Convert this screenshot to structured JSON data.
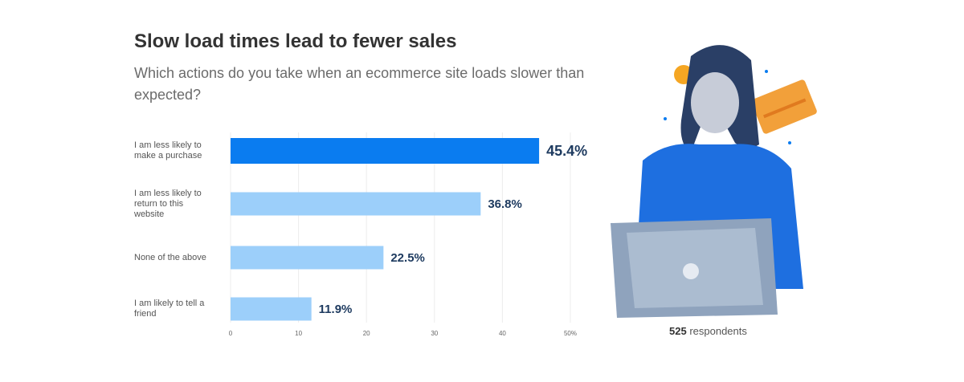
{
  "chart_data": {
    "type": "hbar",
    "title": "Slow load times lead to fewer sales",
    "subtitle": "Which actions do you take when an ecommerce site loads slower than expected?",
    "categories": [
      "I am less likely to make a purchase",
      "I am less likely to return to this website",
      "None of the above",
      "I am likely to tell a friend"
    ],
    "values": [
      45.4,
      36.8,
      22.5,
      11.9
    ],
    "value_labels": [
      "45.4%",
      "36.8%",
      "22.5%",
      "11.9%"
    ],
    "colors": [
      "#0a7cf0",
      "#9ccffa",
      "#9ccffa",
      "#9ccffa"
    ],
    "xlim": [
      0,
      50
    ],
    "xticks": [
      0,
      10,
      20,
      30,
      40,
      {
        "value": 50,
        "label": "50%"
      }
    ],
    "grid": true,
    "note": {
      "count": 525,
      "text": "respondents"
    }
  }
}
